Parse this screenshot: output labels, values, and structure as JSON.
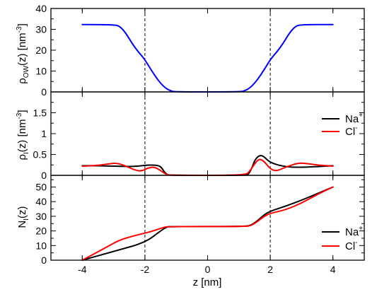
{
  "chart_data": [
    {
      "type": "line",
      "ylabel": "ρ_OW(z) [nm^-3]",
      "ylabel_parts": {
        "base": "ρ",
        "sub": "OW",
        "mid": "(z) [nm",
        "sup": "-3",
        "end": "]"
      },
      "xlim": [
        -5,
        5
      ],
      "ylim": [
        0,
        40
      ],
      "yticks": [
        0,
        10,
        20,
        30,
        40
      ],
      "vlines": [
        -2,
        2
      ],
      "series": [
        {
          "color": "#0000ff",
          "x": [
            -4,
            -3.0,
            -2.8,
            -2.6,
            -2.4,
            -2.2,
            -2.0,
            -1.8,
            -1.6,
            -1.4,
            -1.2,
            -1.0,
            1.0,
            1.2,
            1.4,
            1.6,
            1.8,
            2.0,
            2.2,
            2.4,
            2.6,
            2.8,
            3.0,
            4
          ],
          "y": [
            32.3,
            32.3,
            31.5,
            28,
            23,
            19,
            15.5,
            10.5,
            6,
            2.5,
            0.5,
            0,
            0,
            0.5,
            2.5,
            6,
            10.5,
            15.5,
            19,
            23,
            28,
            31.5,
            32.3,
            32.3
          ]
        }
      ]
    },
    {
      "type": "line",
      "ylabel": "ρ_I(z) [nm^-3]",
      "ylabel_parts": {
        "base": "ρ",
        "sub": "I",
        "mid": "(z) [nm",
        "sup": "-3",
        "end": "]"
      },
      "xlim": [
        -5,
        5
      ],
      "ylim": [
        0,
        2
      ],
      "yticks": [
        0,
        0.5,
        1,
        1.5
      ],
      "ytick_labels": [
        "0",
        "0.5",
        "1",
        "1.5"
      ],
      "vlines": [
        -2,
        2
      ],
      "legend": {
        "placement": "top-right"
      },
      "series": [
        {
          "name": "Na",
          "name_sup": "+",
          "color": "#000000",
          "x": [
            -4,
            -3.5,
            -3.0,
            -2.5,
            -2.2,
            -2.0,
            -1.7,
            -1.5,
            -1.4,
            -1.3,
            -1.2,
            1.2,
            1.3,
            1.4,
            1.5,
            1.6,
            1.7,
            1.8,
            2.0,
            2.5,
            3.0,
            4
          ],
          "y": [
            0.23,
            0.23,
            0.22,
            0.21,
            0.22,
            0.24,
            0.25,
            0.22,
            0.1,
            0.02,
            0,
            0,
            0.02,
            0.15,
            0.35,
            0.45,
            0.48,
            0.45,
            0.3,
            0.2,
            0.19,
            0.23
          ]
        },
        {
          "name": "Cl",
          "name_sup": "-",
          "color": "#ff0000",
          "x": [
            -4,
            -3.6,
            -3.2,
            -2.9,
            -2.6,
            -2.3,
            -2.1,
            -1.9,
            -1.7,
            -1.5,
            -1.35,
            -1.2,
            1.2,
            1.35,
            1.5,
            1.65,
            1.8,
            2.0,
            2.2,
            2.5,
            2.9,
            3.2,
            3.6,
            4
          ],
          "y": [
            0.22,
            0.23,
            0.27,
            0.3,
            0.22,
            0.12,
            0.1,
            0.18,
            0.2,
            0.12,
            0.03,
            0,
            0,
            0.1,
            0.28,
            0.4,
            0.34,
            0.15,
            0.1,
            0.2,
            0.3,
            0.28,
            0.24,
            0.22
          ]
        }
      ]
    },
    {
      "type": "line",
      "ylabel": "N_I(z)",
      "ylabel_parts": {
        "base": "N",
        "sub": "I",
        "mid": "(z)",
        "sup": "",
        "end": ""
      },
      "xlabel": "z [nm]",
      "xlim": [
        -5,
        5
      ],
      "xticks": [
        -4,
        -2,
        0,
        2,
        4
      ],
      "ylim": [
        0,
        58
      ],
      "yticks": [
        0,
        10,
        20,
        30,
        40,
        50
      ],
      "vlines": [
        -2,
        2
      ],
      "legend": {
        "placement": "bottom-right"
      },
      "series": [
        {
          "name": "Na",
          "name_sup": "+",
          "color": "#000000",
          "x": [
            -4,
            -3.0,
            -2.0,
            -1.5,
            -1.3,
            -1.2,
            1.2,
            1.4,
            1.6,
            1.8,
            2.0,
            2.5,
            3.0,
            3.5,
            4
          ],
          "y": [
            0,
            6,
            12,
            20,
            22.8,
            23,
            23,
            24,
            27,
            31,
            33.5,
            37,
            41,
            45.5,
            50
          ]
        },
        {
          "name": "Cl",
          "name_sup": "-",
          "color": "#ff0000",
          "x": [
            -4,
            -3.3,
            -2.8,
            -2.2,
            -1.8,
            -1.4,
            -1.2,
            1.2,
            1.4,
            1.6,
            1.8,
            2.0,
            2.5,
            3.0,
            3.5,
            4
          ],
          "y": [
            0,
            8,
            14,
            17.5,
            19.5,
            22.5,
            23,
            23,
            23.8,
            26.5,
            30,
            32,
            34.5,
            39,
            45,
            50
          ]
        }
      ]
    }
  ]
}
